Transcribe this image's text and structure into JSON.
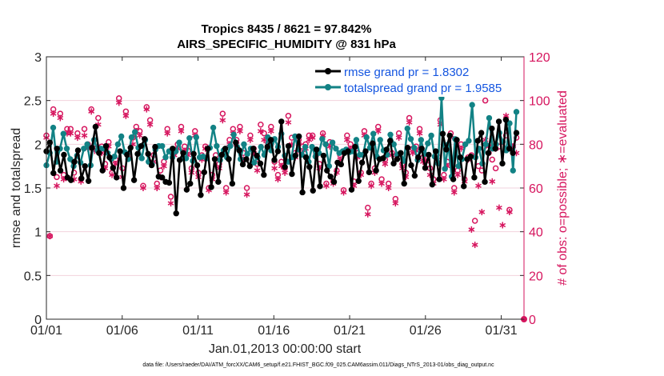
{
  "chart_data": {
    "type": "line",
    "title": "Tropics 8435 / 8621 = 97.842%",
    "subtitle": "AIRS_SPECIFIC_HUMIDITY @ 831 hPa",
    "xlabel": "Jan.01,2013 00:00:00 start",
    "ylabel": "rmse and totalspread",
    "y2label": "# of obs: o=possible; ∗=evaluated",
    "footer": "data file: /Users/raeder/DAI/ATM_forcXX/CAM6_setup/f.e21.FHIST_BGC.f09_025.CAM6assim.011/Diags_NTrS_2013-01/obs_diag_output.nc",
    "xlim": [
      0,
      31.5
    ],
    "ylim": [
      0,
      3
    ],
    "y2lim": [
      0,
      120
    ],
    "xticks": [
      {
        "x": 0,
        "label": "01/01"
      },
      {
        "x": 5,
        "label": "01/06"
      },
      {
        "x": 10,
        "label": "01/11"
      },
      {
        "x": 15,
        "label": "01/16"
      },
      {
        "x": 20,
        "label": "01/21"
      },
      {
        "x": 25,
        "label": "01/26"
      },
      {
        "x": 30,
        "label": "01/31"
      }
    ],
    "yticks": [
      0,
      0.5,
      1,
      1.5,
      2,
      2.5,
      3
    ],
    "y2ticks": [
      0,
      20,
      40,
      60,
      80,
      100,
      120
    ],
    "colors": {
      "rmse": "#000000",
      "spread": "#128285",
      "obs": "#d6155e",
      "legend_text": "#1455e0",
      "axis2": "#d6155e"
    },
    "legend": {
      "placement": "top-right"
    },
    "series": [
      {
        "name": "rmse grand pr = 1.8302",
        "axis": "left",
        "values": [
          1.92,
          2.02,
          1.67,
          1.95,
          1.7,
          1.88,
          1.62,
          1.59,
          1.8,
          1.93,
          1.61,
          1.75,
          1.58,
          1.96,
          2.2,
          1.9,
          1.7,
          1.98,
          1.85,
          1.73,
          1.62,
          1.92,
          1.5,
          1.88,
          1.96,
          1.59,
          1.89,
          1.98,
          2.06,
          1.89,
          1.76,
          1.97,
          1.63,
          1.62,
          1.57,
          1.56,
          1.95,
          1.21,
          1.82,
          1.9,
          1.48,
          1.55,
          1.89,
          1.76,
          1.42,
          1.68,
          1.95,
          1.51,
          1.83,
          1.57,
          1.88,
          1.95,
          1.83,
          1.55,
          2.02,
          1.93,
          1.77,
          1.83,
          1.75,
          1.95,
          1.87,
          1.78,
          1.65,
          1.97,
          2.05,
          1.82,
          1.92,
          2.26,
          1.74,
          1.98,
          1.66,
          1.87,
          2.09,
          1.45,
          1.85,
          1.74,
          1.47,
          1.94,
          1.52,
          1.87,
          1.7,
          1.63,
          1.57,
          1.79,
          1.77,
          1.9,
          1.92,
          1.48,
          1.97,
          1.58,
          1.79,
          1.92,
          1.68,
          2.01,
          1.7,
          1.83,
          1.84,
          1.94,
          2.04,
          1.78,
          1.83,
          1.9,
          1.55,
          1.96,
          1.76,
          1.64,
          1.85,
          1.95,
          1.73,
          1.88,
          1.54,
          1.92,
          1.6,
          2.12,
          1.94,
          2.1,
          1.6,
          2.05,
          1.85,
          1.52,
          1.83,
          1.86,
          1.62,
          2.04,
          2.13,
          1.57,
          1.9,
          2.18,
          1.95,
          2.26,
          1.78,
          2.28,
          1.95,
          1.9,
          2.13
        ]
      },
      {
        "name": "totalspread grand pr = 1.9585",
        "axis": "left",
        "values": [
          1.76,
          1.9,
          2.19,
          1.8,
          1.95,
          2.12,
          1.95,
          1.83,
          1.75,
          1.87,
          1.79,
          1.95,
          2.0,
          1.76,
          2.05,
          1.93,
          1.95,
          1.95,
          1.9,
          1.83,
          1.86,
          2.0,
          2.09,
          1.91,
          1.83,
          2.08,
          2.14,
          1.96,
          1.84,
          2.05,
          1.8,
          1.77,
          1.94,
          1.98,
          1.98,
          1.85,
          1.92,
          1.85,
          1.92,
          2.02,
          1.84,
          1.84,
          2.07,
          1.81,
          2.08,
          1.85,
          1.86,
          1.84,
          1.96,
          2.19,
          1.98,
          1.82,
          1.93,
          1.85,
          1.98,
          2.11,
          1.97,
          1.83,
          2.0,
          1.89,
          1.95,
          1.79,
          1.85,
          1.97,
          1.88,
          2.08,
          1.93,
          2.06,
          1.97,
          2.12,
          1.87,
          1.8,
          1.85,
          2.09,
          1.94,
          1.88,
          1.97,
          1.8,
          1.97,
          1.86,
          1.9,
          2.06,
          2.0,
          1.75,
          2.02,
          1.95,
          1.9,
          1.92,
          1.94,
          1.91,
          1.92,
          2.05,
          1.88,
          1.88,
          2.08,
          1.96,
          2.12,
          1.86,
          2.05,
          1.93,
          1.88,
          2.11,
          2.0,
          1.88,
          1.9,
          1.81,
          2.18,
          2.06,
          1.96,
          1.82,
          2.05,
          1.89,
          2.01,
          2.1,
          1.86,
          1.78,
          2.53,
          1.72,
          2.0,
          1.63,
          2.06,
          1.75,
          1.83,
          2.0,
          2.04,
          2.45,
          1.85,
          1.95,
          1.78,
          2.0,
          2.3,
          1.95,
          2.0,
          2.13,
          2.03,
          1.93,
          2.24,
          1.7,
          2.37
        ]
      },
      {
        "name": "possible",
        "axis": "right",
        "marker": "o",
        "values": [
          84,
          38,
          96,
          65,
          94,
          66,
          87,
          87,
          67,
          85,
          64,
          87,
          80,
          96,
          78,
          92,
          79,
          71,
          81,
          67,
          73,
          101,
          69,
          95,
          75,
          83,
          88,
          86,
          61,
          97,
          91,
          75,
          62,
          68,
          72,
          87,
          56,
          76,
          80,
          88,
          79,
          77,
          69,
          86,
          67,
          75,
          79,
          60,
          66,
          75,
          71,
          94,
          60,
          82,
          87,
          82,
          88,
          76,
          60,
          84,
          78,
          71,
          89,
          85,
          82,
          88,
          72,
          66,
          72,
          69,
          93,
          83,
          76,
          82,
          79,
          80,
          84,
          84,
          77,
          71,
          85,
          62,
          81,
          63,
          68,
          75,
          59,
          84,
          80,
          63,
          76,
          67,
          86,
          51,
          62,
          69,
          88,
          64,
          73,
          62,
          76,
          55,
          85,
          71,
          67,
          92,
          78,
          79,
          87,
          74,
          74,
          69,
          64,
          75,
          91,
          66,
          72,
          85,
          60,
          68,
          80,
          64,
          74,
          75,
          45,
          70,
          68,
          100,
          76,
          73,
          69,
          79,
          81,
          84,
          50,
          79,
          83
        ]
      },
      {
        "name": "evaluated",
        "axis": "right",
        "marker": "*",
        "values": [
          83,
          38,
          94,
          61,
          92,
          64,
          85,
          85,
          64,
          83,
          63,
          84,
          78,
          95,
          77,
          89,
          76,
          69,
          79,
          66,
          71,
          99,
          65,
          93,
          74,
          80,
          86,
          84,
          60,
          96,
          89,
          72,
          60,
          65,
          70,
          85,
          53,
          75,
          78,
          86,
          77,
          75,
          67,
          84,
          65,
          73,
          78,
          59,
          64,
          73,
          69,
          91,
          58,
          80,
          85,
          80,
          86,
          73,
          57,
          82,
          76,
          68,
          86,
          82,
          80,
          86,
          69,
          64,
          70,
          67,
          90,
          80,
          74,
          80,
          76,
          78,
          82,
          83,
          75,
          69,
          84,
          61,
          79,
          62,
          67,
          73,
          58,
          82,
          78,
          61,
          74,
          66,
          84,
          48,
          61,
          67,
          86,
          62,
          71,
          60,
          75,
          53,
          83,
          69,
          65,
          90,
          76,
          77,
          85,
          72,
          72,
          66,
          62,
          73,
          89,
          64,
          70,
          83,
          58,
          66,
          78,
          63,
          73,
          41,
          34,
          61,
          49,
          82,
          79,
          63,
          78,
          51,
          43,
          93,
          49,
          79,
          76
        ]
      }
    ]
  }
}
